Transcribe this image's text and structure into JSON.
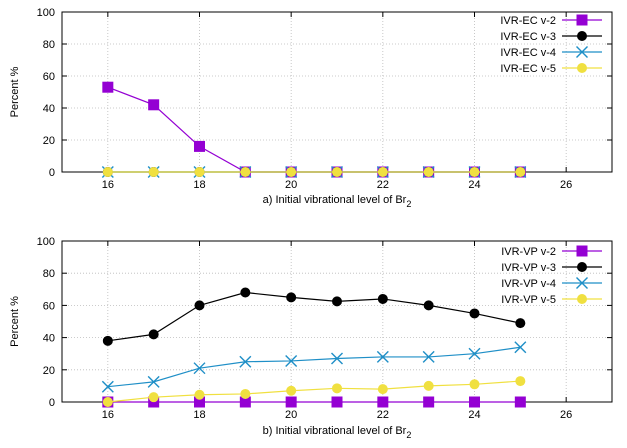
{
  "chart_data": [
    {
      "type": "line",
      "xlabel_main": "a) Initial vibrational level of Br",
      "xlabel_sub": "2",
      "ylabel": "Percent %",
      "xlim": [
        15,
        27
      ],
      "ylim": [
        0,
        100
      ],
      "xticks": [
        16,
        18,
        20,
        22,
        24,
        26
      ],
      "yticks": [
        0,
        20,
        40,
        60,
        80,
        100
      ],
      "grid": true,
      "legend_position": "top-right",
      "x": [
        16,
        17,
        18,
        19,
        20,
        21,
        22,
        23,
        24,
        25
      ],
      "series": [
        {
          "name": "IVR-EC v-2",
          "marker": "square",
          "color": "#9400d3",
          "values": [
            53,
            42,
            16,
            0,
            0,
            0,
            0,
            0,
            0,
            0
          ]
        },
        {
          "name": "IVR-EC v-3",
          "marker": "circle",
          "color": "#000000",
          "values": [
            0,
            0,
            0,
            0,
            0,
            0,
            0,
            0,
            0,
            0
          ]
        },
        {
          "name": "IVR-EC v-4",
          "marker": "cross",
          "color": "#1f8fc7",
          "values": [
            0,
            0,
            0,
            0,
            0,
            0,
            0,
            0,
            0,
            0
          ]
        },
        {
          "name": "IVR-EC v-5",
          "marker": "circle",
          "color": "#f0e040",
          "values": [
            0,
            0,
            0,
            0,
            0,
            0,
            0,
            0,
            0,
            0
          ]
        }
      ]
    },
    {
      "type": "line",
      "xlabel_main": "b) Initial vibrational level of Br",
      "xlabel_sub": "2",
      "ylabel": "Percent %",
      "xlim": [
        15,
        27
      ],
      "ylim": [
        0,
        100
      ],
      "xticks": [
        16,
        18,
        20,
        22,
        24,
        26
      ],
      "yticks": [
        0,
        20,
        40,
        60,
        80,
        100
      ],
      "grid": true,
      "legend_position": "top-right",
      "x": [
        16,
        17,
        18,
        19,
        20,
        21,
        22,
        23,
        24,
        25
      ],
      "series": [
        {
          "name": "IVR-VP v-2",
          "marker": "square",
          "color": "#9400d3",
          "values": [
            0,
            0,
            0,
            0,
            0,
            0,
            0,
            0,
            0,
            0
          ]
        },
        {
          "name": "IVR-VP v-3",
          "marker": "circle",
          "color": "#000000",
          "values": [
            38,
            42,
            60,
            68,
            65,
            62.5,
            64,
            60,
            55,
            49
          ]
        },
        {
          "name": "IVR-VP v-4",
          "marker": "cross",
          "color": "#1f8fc7",
          "values": [
            9.5,
            12.5,
            21,
            25,
            25.5,
            27,
            28,
            28,
            30,
            34
          ]
        },
        {
          "name": "IVR-VP v-5",
          "marker": "circle",
          "color": "#f0e040",
          "values": [
            0,
            3,
            4.5,
            5,
            7,
            8.5,
            8,
            10,
            11,
            13
          ]
        }
      ]
    }
  ]
}
